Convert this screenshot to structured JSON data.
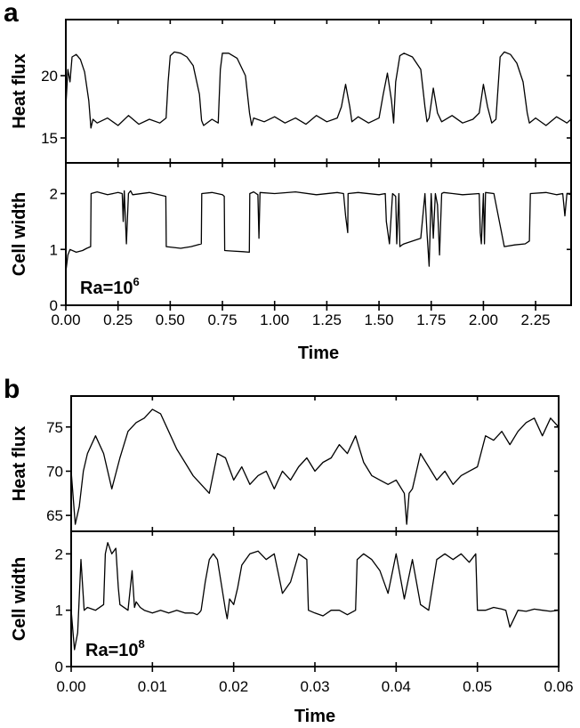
{
  "chart_data": [
    {
      "panel": "a",
      "type": "line",
      "annotation": {
        "base": "Ra=10",
        "exponent": "6"
      },
      "xlabel": "Time",
      "xlim": [
        0,
        2.42
      ],
      "xticks": [
        0,
        0.25,
        0.5,
        0.75,
        1.0,
        1.25,
        1.5,
        1.75,
        2.0,
        2.25
      ],
      "xtick_labels": [
        "0.00",
        "0.25",
        "0.50",
        "0.75",
        "1.00",
        "1.25",
        "1.50",
        "1.75",
        "2.00",
        "2.25"
      ],
      "subplots": [
        {
          "ylabel": "Heat flux",
          "ylim": [
            13,
            24.5
          ],
          "yticks": [
            15,
            20
          ],
          "ytick_labels": [
            "15",
            "20"
          ],
          "x": [
            0,
            0.01,
            0.02,
            0.03,
            0.05,
            0.07,
            0.09,
            0.11,
            0.12,
            0.13,
            0.15,
            0.2,
            0.25,
            0.3,
            0.35,
            0.4,
            0.45,
            0.48,
            0.49,
            0.5,
            0.52,
            0.55,
            0.58,
            0.61,
            0.64,
            0.65,
            0.66,
            0.7,
            0.73,
            0.74,
            0.75,
            0.78,
            0.82,
            0.86,
            0.88,
            0.89,
            0.9,
            0.95,
            1.0,
            1.05,
            1.1,
            1.15,
            1.2,
            1.25,
            1.3,
            1.32,
            1.34,
            1.36,
            1.37,
            1.4,
            1.45,
            1.5,
            1.52,
            1.54,
            1.56,
            1.57,
            1.58,
            1.6,
            1.62,
            1.66,
            1.7,
            1.72,
            1.73,
            1.74,
            1.76,
            1.78,
            1.8,
            1.85,
            1.9,
            1.95,
            1.98,
            2.0,
            2.02,
            2.04,
            2.06,
            2.08,
            2.1,
            2.13,
            2.16,
            2.19,
            2.21,
            2.22,
            2.25,
            2.3,
            2.35,
            2.4,
            2.42
          ],
          "values": [
            17.5,
            20.5,
            19.5,
            21.5,
            21.7,
            21.3,
            20.3,
            18.0,
            15.8,
            16.5,
            16.2,
            16.6,
            16.0,
            16.8,
            16.1,
            16.5,
            16.2,
            16.6,
            19.5,
            21.6,
            21.9,
            21.8,
            21.5,
            20.8,
            18.5,
            16.4,
            16.0,
            16.5,
            16.2,
            20.5,
            21.8,
            21.8,
            21.4,
            20.0,
            17.0,
            16.0,
            16.6,
            16.3,
            16.7,
            16.2,
            16.6,
            16.1,
            16.8,
            16.3,
            16.6,
            17.5,
            19.3,
            17.5,
            16.3,
            16.7,
            16.2,
            16.6,
            18.5,
            20.2,
            18.0,
            16.2,
            19.5,
            21.6,
            21.8,
            21.5,
            20.5,
            17.5,
            16.3,
            16.6,
            19.0,
            17.0,
            16.3,
            16.8,
            16.2,
            16.5,
            17.0,
            19.3,
            17.5,
            16.2,
            16.5,
            21.5,
            21.9,
            21.7,
            21.0,
            19.5,
            17.0,
            16.2,
            16.6,
            16.0,
            16.7,
            16.2,
            16.5
          ]
        },
        {
          "ylabel": "Cell width",
          "ylim": [
            0,
            2.55
          ],
          "yticks": [
            0,
            1,
            2
          ],
          "ytick_labels": [
            "0",
            "1",
            "2"
          ],
          "x": [
            0,
            0.01,
            0.02,
            0.05,
            0.08,
            0.1,
            0.119,
            0.121,
            0.15,
            0.2,
            0.25,
            0.27,
            0.275,
            0.28,
            0.29,
            0.3,
            0.31,
            0.32,
            0.4,
            0.479,
            0.481,
            0.55,
            0.6,
            0.649,
            0.651,
            0.7,
            0.75,
            0.759,
            0.761,
            0.8,
            0.85,
            0.879,
            0.881,
            0.9,
            0.92,
            0.925,
            0.93,
            1.0,
            1.1,
            1.2,
            1.3,
            1.33,
            1.34,
            1.35,
            1.352,
            1.4,
            1.5,
            1.53,
            1.535,
            1.55,
            1.565,
            1.58,
            1.585,
            1.595,
            1.6,
            1.61,
            1.62,
            1.7,
            1.72,
            1.73,
            1.74,
            1.75,
            1.76,
            1.77,
            1.78,
            1.79,
            1.8,
            1.81,
            1.9,
            1.98,
            1.985,
            1.99,
            2.0,
            2.005,
            2.01,
            2.05,
            2.1,
            2.15,
            2.2,
            2.22,
            2.225,
            2.3,
            2.35,
            2.38,
            2.39,
            2.4,
            2.42
          ],
          "values": [
            0.6,
            0.9,
            1.0,
            0.95,
            0.98,
            1.02,
            1.05,
            2.0,
            2.03,
            1.98,
            2.02,
            2.0,
            1.5,
            2.05,
            1.1,
            2.0,
            2.05,
            1.98,
            2.02,
            1.95,
            1.05,
            1.02,
            1.05,
            1.1,
            2.0,
            2.02,
            1.98,
            1.95,
            0.98,
            0.97,
            0.96,
            0.95,
            2.0,
            2.03,
            1.98,
            1.2,
            2.02,
            2.0,
            2.03,
            1.98,
            2.02,
            2.0,
            1.6,
            1.3,
            2.0,
            2.02,
            1.98,
            2.0,
            1.5,
            1.1,
            2.0,
            1.95,
            1.1,
            2.0,
            1.05,
            1.08,
            1.1,
            1.2,
            2.0,
            1.3,
            0.7,
            2.0,
            1.2,
            2.0,
            1.8,
            0.9,
            2.0,
            2.02,
            1.98,
            2.0,
            1.3,
            1.1,
            2.0,
            1.1,
            2.02,
            2.0,
            1.05,
            1.08,
            1.1,
            1.15,
            2.0,
            2.02,
            1.98,
            2.0,
            1.6,
            2.0,
            1.98
          ]
        }
      ]
    },
    {
      "panel": "b",
      "type": "line",
      "annotation": {
        "base": "Ra=10",
        "exponent": "8"
      },
      "xlabel": "Time",
      "xlim": [
        0,
        0.06
      ],
      "xticks": [
        0,
        0.01,
        0.02,
        0.03,
        0.04,
        0.05,
        0.06
      ],
      "xtick_labels": [
        "0.00",
        "0.01",
        "0.02",
        "0.03",
        "0.04",
        "0.05",
        "0.06"
      ],
      "subplots": [
        {
          "ylabel": "Heat flux",
          "ylim": [
            63.2,
            78.5
          ],
          "yticks": [
            65,
            70,
            75
          ],
          "ytick_labels": [
            "65",
            "70",
            "75"
          ],
          "x": [
            0,
            0.0005,
            0.001,
            0.0015,
            0.002,
            0.003,
            0.004,
            0.005,
            0.006,
            0.007,
            0.008,
            0.009,
            0.01,
            0.011,
            0.012,
            0.013,
            0.014,
            0.015,
            0.016,
            0.017,
            0.018,
            0.019,
            0.02,
            0.021,
            0.022,
            0.023,
            0.024,
            0.025,
            0.026,
            0.027,
            0.028,
            0.029,
            0.03,
            0.031,
            0.032,
            0.033,
            0.034,
            0.035,
            0.036,
            0.037,
            0.038,
            0.039,
            0.04,
            0.041,
            0.0413,
            0.0416,
            0.042,
            0.043,
            0.044,
            0.045,
            0.046,
            0.047,
            0.048,
            0.049,
            0.05,
            0.051,
            0.052,
            0.053,
            0.054,
            0.055,
            0.056,
            0.057,
            0.058,
            0.059,
            0.06
          ],
          "values": [
            70.0,
            64.0,
            66.0,
            70.0,
            72.0,
            74.0,
            72.0,
            68.0,
            71.5,
            74.5,
            75.5,
            76.0,
            77.0,
            76.5,
            74.5,
            72.5,
            71.0,
            69.5,
            68.5,
            67.5,
            72.0,
            71.5,
            69.0,
            70.5,
            68.5,
            69.5,
            70.0,
            68.0,
            70.0,
            69.0,
            70.5,
            71.5,
            70.0,
            71.0,
            71.5,
            73.0,
            72.0,
            74.0,
            71.0,
            69.5,
            69.0,
            68.5,
            69.0,
            67.5,
            64.0,
            67.5,
            68.0,
            72.0,
            70.5,
            69.0,
            70.0,
            68.5,
            69.5,
            70.0,
            70.5,
            74.0,
            73.5,
            74.5,
            73.0,
            74.5,
            75.5,
            76.0,
            74.0,
            76.0,
            75.0
          ]
        },
        {
          "ylabel": "Cell width",
          "ylim": [
            0,
            2.4
          ],
          "yticks": [
            0,
            1,
            2
          ],
          "ytick_labels": [
            "0",
            "1",
            "2"
          ],
          "x": [
            0,
            0.0004,
            0.0008,
            0.0012,
            0.0016,
            0.002,
            0.003,
            0.004,
            0.0042,
            0.0045,
            0.005,
            0.0055,
            0.0058,
            0.006,
            0.007,
            0.0075,
            0.0078,
            0.008,
            0.0085,
            0.009,
            0.01,
            0.011,
            0.012,
            0.013,
            0.014,
            0.015,
            0.0155,
            0.0158,
            0.016,
            0.0165,
            0.017,
            0.0175,
            0.018,
            0.019,
            0.0192,
            0.0195,
            0.02,
            0.0205,
            0.021,
            0.022,
            0.023,
            0.024,
            0.025,
            0.026,
            0.027,
            0.028,
            0.029,
            0.0292,
            0.03,
            0.031,
            0.032,
            0.033,
            0.034,
            0.035,
            0.0352,
            0.036,
            0.037,
            0.038,
            0.039,
            0.04,
            0.041,
            0.042,
            0.043,
            0.044,
            0.045,
            0.046,
            0.047,
            0.048,
            0.049,
            0.0498,
            0.05,
            0.051,
            0.052,
            0.053,
            0.0535,
            0.054,
            0.055,
            0.056,
            0.057,
            0.058,
            0.059,
            0.06
          ],
          "values": [
            1.0,
            0.3,
            0.6,
            1.9,
            1.0,
            1.05,
            1.0,
            1.1,
            2.0,
            2.2,
            2.0,
            2.1,
            1.4,
            1.1,
            1.0,
            1.7,
            1.05,
            1.15,
            1.05,
            1.0,
            0.95,
            1.0,
            0.95,
            1.0,
            0.95,
            0.95,
            0.92,
            0.96,
            1.0,
            1.5,
            1.9,
            2.0,
            1.9,
            1.0,
            0.85,
            1.2,
            1.1,
            1.4,
            1.8,
            2.0,
            2.05,
            1.9,
            2.0,
            1.3,
            1.5,
            2.0,
            1.9,
            1.0,
            0.95,
            0.9,
            1.0,
            1.0,
            0.92,
            1.0,
            1.9,
            2.0,
            1.9,
            1.7,
            1.3,
            2.0,
            1.2,
            1.9,
            1.1,
            1.0,
            1.9,
            2.0,
            1.9,
            2.0,
            1.85,
            2.0,
            1.0,
            1.0,
            1.05,
            1.02,
            1.0,
            0.7,
            1.0,
            0.98,
            1.02,
            1.0,
            0.98,
            1.0
          ]
        }
      ]
    }
  ]
}
